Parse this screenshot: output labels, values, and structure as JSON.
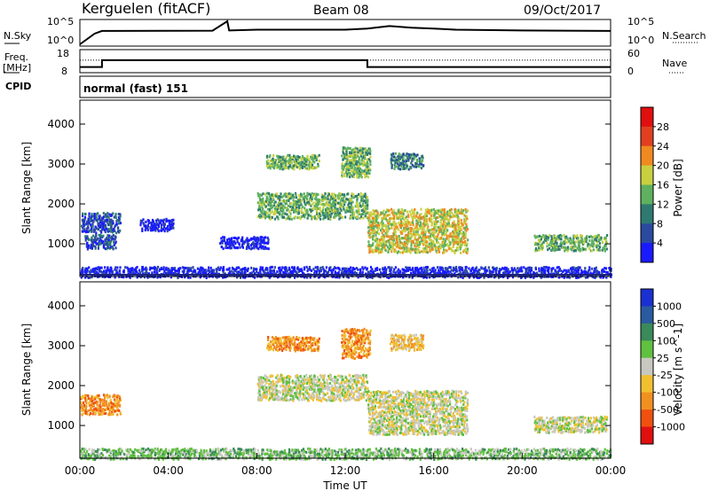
{
  "header": {
    "station": "Kerguelen (fitACF)",
    "beam": "Beam 08",
    "date": "09/Oct/2017"
  },
  "left_labels": {
    "nsky": "N.Sky",
    "freq": "Freq.",
    "freq_unit": "[MHz]",
    "cpid": "CPID"
  },
  "right_labels": {
    "nsearch": "N.Search",
    "nave": "Nave"
  },
  "cpid_text": "normal (fast) 151",
  "colors": {
    "scatter_blue": "#2f3fae",
    "ground_line": "#1a237e",
    "grey": "#c8c8c0"
  },
  "chart_data": [
    {
      "type": "line",
      "panel": "noise",
      "series": [
        {
          "name": "N.Sky",
          "style": "solid"
        },
        {
          "name": "N.Search",
          "style": "dotted"
        }
      ],
      "left_ticks": [
        "10^5",
        "10^0"
      ],
      "right_ticks": [
        "10^5",
        "10^0"
      ],
      "x": [
        "00:00",
        "00:40",
        "01:00",
        "06:00",
        "06:40",
        "06:45",
        "08:00",
        "12:00",
        "13:00",
        "14:00",
        "15:00",
        "16:00",
        "17:00",
        "20:00",
        "24:00"
      ],
      "nsky": [
        1,
        200,
        800,
        900,
        100000,
        1000,
        1500,
        1500,
        2500,
        9000,
        4000,
        2500,
        1500,
        1000,
        800
      ]
    },
    {
      "type": "line",
      "panel": "frequency / nave",
      "series": [
        {
          "name": "Freq.",
          "style": "solid"
        },
        {
          "name": "Nave",
          "style": "dotted"
        }
      ],
      "left_ticks": [
        "18",
        "8"
      ],
      "right_ticks": [
        "60",
        "0"
      ],
      "x": [
        "00:00",
        "01:00",
        "01:00",
        "13:00",
        "13:00",
        "24:00"
      ],
      "freq_mhz": [
        10,
        10,
        13.5,
        13.5,
        10,
        10
      ],
      "nave_value": 33
    },
    {
      "type": "heatmap",
      "panel": "power",
      "xlabel": "",
      "ylabel": "Slant Range [km]",
      "y_ticks": [
        "1000",
        "2000",
        "3000",
        "4000"
      ],
      "ylim": [
        180,
        4600
      ],
      "colorbar_label": "Power [dB]",
      "colorbar_ticks": [
        "4",
        "8",
        "12",
        "16",
        "20",
        "24",
        "28"
      ],
      "colorbar_colors": [
        "#1a1aff",
        "#2a4aa0",
        "#2f7a70",
        "#5fb05f",
        "#c8d040",
        "#f08a20",
        "#e04020",
        "#e01010"
      ],
      "regions": [
        {
          "t0": 0.0,
          "t1": 1.8,
          "r0": 1300,
          "r1": 1800,
          "dominant": 1
        },
        {
          "t0": 0.2,
          "t1": 1.6,
          "r0": 900,
          "r1": 1250,
          "dominant": 1
        },
        {
          "t0": 2.7,
          "t1": 4.2,
          "r0": 1350,
          "r1": 1650,
          "dominant": 0
        },
        {
          "t0": 6.3,
          "t1": 8.5,
          "r0": 900,
          "r1": 1200,
          "dominant": 0
        },
        {
          "t0": 8.4,
          "t1": 10.8,
          "r0": 2900,
          "r1": 3250,
          "dominant": 3
        },
        {
          "t0": 11.8,
          "t1": 13.1,
          "r0": 2700,
          "r1": 3450,
          "dominant": 3
        },
        {
          "t0": 14.0,
          "t1": 15.5,
          "r0": 2900,
          "r1": 3300,
          "dominant": 2
        },
        {
          "t0": 8.0,
          "t1": 13.0,
          "r0": 1650,
          "r1": 2300,
          "dominant": 3
        },
        {
          "t0": 13.0,
          "t1": 17.5,
          "r0": 800,
          "r1": 1900,
          "dominant": 4
        },
        {
          "t0": 20.5,
          "t1": 23.8,
          "r0": 850,
          "r1": 1250,
          "dominant": 3
        },
        {
          "t0": 0.0,
          "t1": 24.0,
          "r0": 180,
          "r1": 450,
          "dominant": 0
        }
      ]
    },
    {
      "type": "heatmap",
      "panel": "velocity",
      "xlabel": "Time UT",
      "ylabel": "Slant Range [km]",
      "x_ticks": [
        "00:00",
        "04:00",
        "08:00",
        "12:00",
        "16:00",
        "20:00",
        "00:00"
      ],
      "y_ticks": [
        "1000",
        "2000",
        "3000",
        "4000"
      ],
      "ylim": [
        180,
        4600
      ],
      "colorbar_label": "Velocity [m s^-1]",
      "colorbar_ticks": [
        "1000",
        "500",
        "100",
        "25",
        "-25",
        "-100",
        "-500",
        "-1000"
      ],
      "colorbar_colors": [
        "#1a30d0",
        "#2a5aa0",
        "#3a8a5a",
        "#60c040",
        "#c8c8c0",
        "#f0c030",
        "#f09020",
        "#f05010",
        "#e01010"
      ],
      "regions": [
        {
          "t0": 0.0,
          "t1": 1.8,
          "r0": 1300,
          "r1": 1800,
          "dominant": 6
        },
        {
          "t0": 8.4,
          "t1": 10.8,
          "r0": 2900,
          "r1": 3250,
          "dominant": 6
        },
        {
          "t0": 11.8,
          "t1": 13.1,
          "r0": 2700,
          "r1": 3450,
          "dominant": 6
        },
        {
          "t0": 14.0,
          "t1": 15.5,
          "r0": 2900,
          "r1": 3300,
          "dominant": 5
        },
        {
          "t0": 8.0,
          "t1": 13.0,
          "r0": 1650,
          "r1": 2300,
          "dominant": 4
        },
        {
          "t0": 13.0,
          "t1": 17.5,
          "r0": 800,
          "r1": 1900,
          "dominant": 4
        },
        {
          "t0": 20.5,
          "t1": 23.8,
          "r0": 850,
          "r1": 1250,
          "dominant": 4
        },
        {
          "t0": 0.0,
          "t1": 24.0,
          "r0": 180,
          "r1": 450,
          "dominant": 3
        }
      ]
    }
  ]
}
